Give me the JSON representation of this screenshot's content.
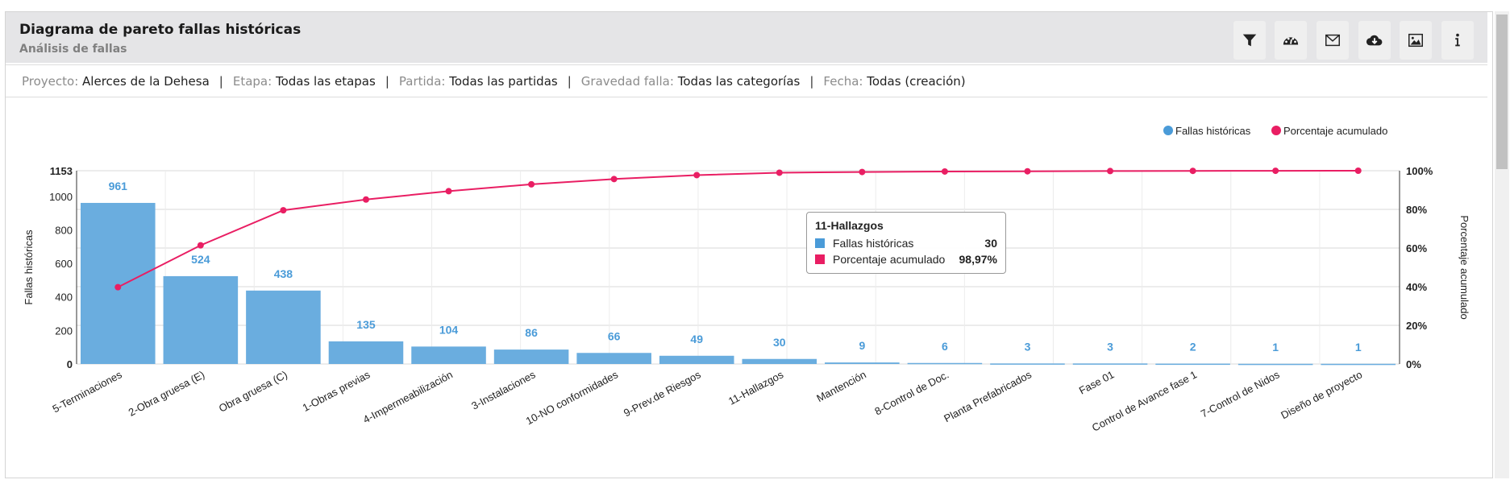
{
  "header": {
    "title": "Diagrama de pareto fallas históricas",
    "subtitle": "Análisis de fallas"
  },
  "toolbar": [
    {
      "icon": "filter-icon"
    },
    {
      "icon": "dashboard-icon"
    },
    {
      "icon": "mail-icon"
    },
    {
      "icon": "cloud-download-icon"
    },
    {
      "icon": "image-icon"
    },
    {
      "icon": "info-icon"
    }
  ],
  "filters": [
    {
      "key": "Proyecto:",
      "value": "Alerces de la Dehesa"
    },
    {
      "key": "Etapa:",
      "value": "Todas las etapas"
    },
    {
      "key": "Partida:",
      "value": "Todas las partidas"
    },
    {
      "key": "Gravedad falla:",
      "value": "Todas las categorías"
    },
    {
      "key": "Fecha:",
      "value": "Todas (creación)"
    }
  ],
  "separator": "|",
  "colors": {
    "bar": "#6aaddf",
    "line": "#e91e63",
    "label": "#4a9bd8"
  },
  "tooltip": {
    "title": "11-Hallazgos",
    "rows": [
      {
        "label": "Fallas históricas",
        "value": "30"
      },
      {
        "label": "Porcentaje acumulado",
        "value": "98,97%"
      }
    ]
  },
  "chart_data": {
    "type": "bar",
    "categories": [
      "5-Terminaciones",
      "2-Obra gruesa (E)",
      "Obra gruesa (C)",
      "1-Obras previas",
      "4-Impermeabilización",
      "3-Instalaciones",
      "10-NO conformidades",
      "9-Prev.de Riesgos",
      "11-Hallazgos",
      "Mantención",
      "8-Control de Doc.",
      "Planta Prefabricados",
      "Fase 01",
      "Control de Avance fase 1",
      "7-Control de Nidos",
      "Diseño de proyecto"
    ],
    "series": [
      {
        "name": "Fallas históricas",
        "type": "bar",
        "axis": "left",
        "values": [
          961,
          524,
          438,
          135,
          104,
          86,
          66,
          49,
          30,
          9,
          6,
          3,
          3,
          2,
          1,
          1
        ]
      },
      {
        "name": "Porcentaje acumulado",
        "type": "line",
        "axis": "right",
        "values": [
          39.74,
          61.41,
          79.53,
          85.11,
          89.41,
          92.97,
          95.7,
          97.73,
          98.97,
          99.34,
          99.59,
          99.71,
          99.83,
          99.92,
          99.96,
          100
        ]
      }
    ],
    "ylabel": "Fallas históricas",
    "y2label": "Porcentaje acumulado",
    "ylim": [
      0,
      1153
    ],
    "y2lim": [
      0,
      100
    ],
    "yticks": [
      "0",
      "200",
      "400",
      "600",
      "800",
      "1000",
      "1153"
    ],
    "y2ticks": [
      "0%",
      "20%",
      "40%",
      "60%",
      "80%",
      "100%"
    ],
    "legend": [
      "Fallas históricas",
      "Porcentaje acumulado"
    ],
    "legend_position": "top-right",
    "grid": true
  }
}
